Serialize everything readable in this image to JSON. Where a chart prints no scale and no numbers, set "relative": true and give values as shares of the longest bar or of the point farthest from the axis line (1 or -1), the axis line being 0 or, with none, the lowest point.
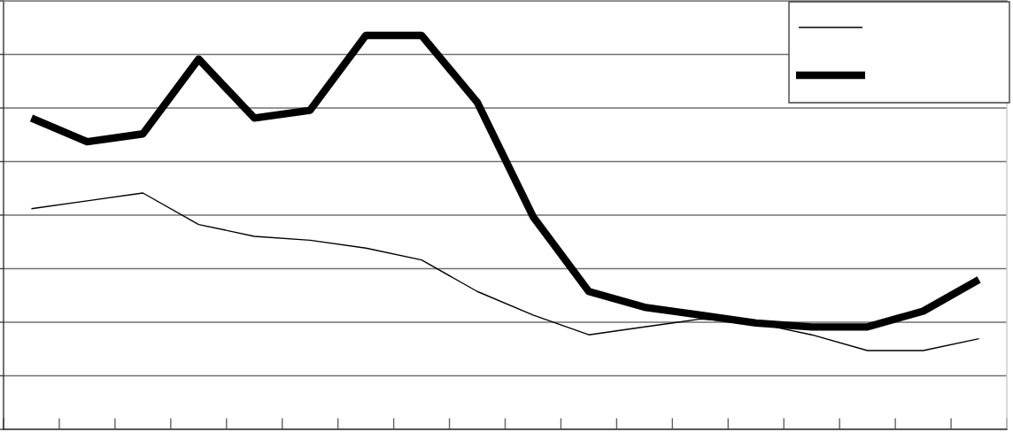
{
  "chart_data": {
    "type": "line",
    "relative": true,
    "categories": [
      null,
      null,
      null,
      null,
      null,
      null,
      null,
      null,
      null,
      null,
      null,
      null,
      null,
      null,
      null,
      null,
      null,
      null
    ],
    "series": [
      {
        "color": "#000000",
        "values": [
          0.56,
          0.58,
          0.6,
          0.52,
          0.49,
          0.48,
          0.46,
          0.43,
          0.35,
          0.29,
          0.24,
          0.26,
          0.28,
          0.27,
          0.24,
          0.2,
          0.2,
          0.23
        ]
      },
      {
        "color": "#000000",
        "values": [
          0.79,
          0.73,
          0.75,
          0.94,
          0.79,
          0.81,
          1,
          1,
          0.83,
          0.54,
          0.35,
          0.31,
          0.29,
          0.27,
          0.26,
          0.26,
          0.3,
          0.38
        ]
      }
    ],
    "grid": "y"
  }
}
